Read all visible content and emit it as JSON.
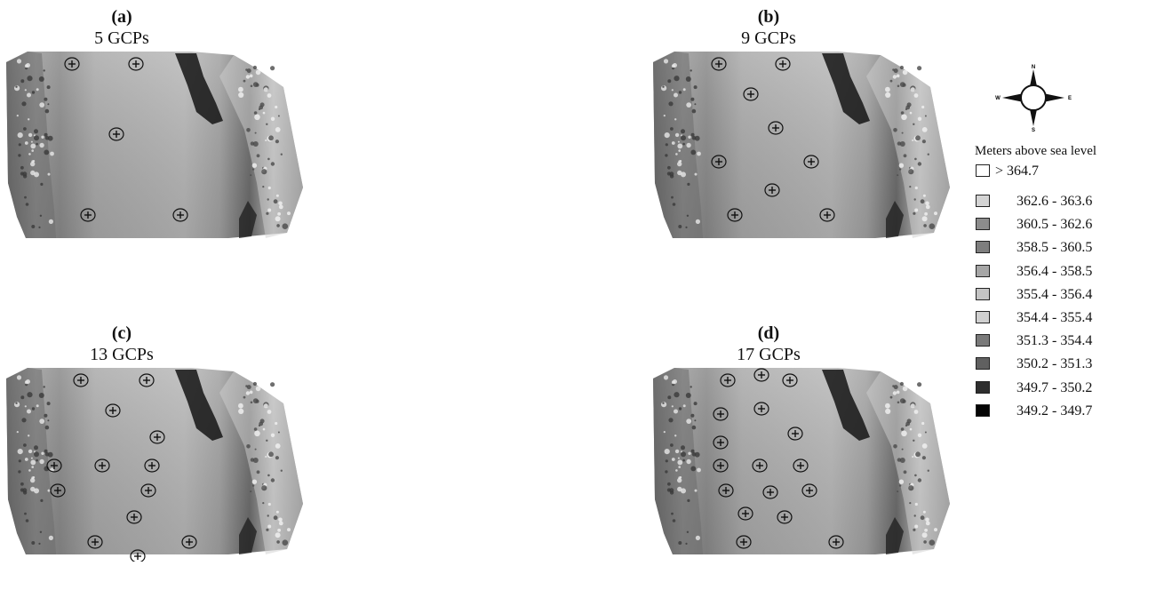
{
  "panels": [
    {
      "id": "a",
      "label": "(a)",
      "title": "5 GCPs",
      "gcps": [
        [
          74,
          16
        ],
        [
          146,
          16
        ],
        [
          124,
          95
        ],
        [
          92,
          186
        ],
        [
          196,
          186
        ]
      ]
    },
    {
      "id": "b",
      "label": "(b)",
      "title": "9 GCPs",
      "gcps": [
        [
          74,
          16
        ],
        [
          146,
          16
        ],
        [
          110,
          50
        ],
        [
          138,
          88
        ],
        [
          74,
          126
        ],
        [
          178,
          126
        ],
        [
          134,
          158
        ],
        [
          92,
          186
        ],
        [
          196,
          186
        ]
      ]
    },
    {
      "id": "c",
      "label": "(c)",
      "title": "13 GCPs",
      "gcps": [
        [
          84,
          16
        ],
        [
          158,
          16
        ],
        [
          120,
          50
        ],
        [
          170,
          80
        ],
        [
          54,
          112
        ],
        [
          108,
          112
        ],
        [
          164,
          112
        ],
        [
          58,
          140
        ],
        [
          160,
          140
        ],
        [
          144,
          170
        ],
        [
          100,
          198
        ],
        [
          206,
          198
        ],
        [
          148,
          214
        ]
      ]
    },
    {
      "id": "d",
      "label": "(d)",
      "title": "17 GCPs",
      "gcps": [
        [
          84,
          16
        ],
        [
          122,
          10
        ],
        [
          154,
          16
        ],
        [
          122,
          48
        ],
        [
          76,
          54
        ],
        [
          160,
          76
        ],
        [
          76,
          86
        ],
        [
          76,
          112
        ],
        [
          120,
          112
        ],
        [
          166,
          112
        ],
        [
          82,
          140
        ],
        [
          132,
          142
        ],
        [
          176,
          140
        ],
        [
          104,
          166
        ],
        [
          148,
          170
        ],
        [
          102,
          198
        ],
        [
          206,
          198
        ]
      ]
    }
  ],
  "legend": {
    "compass_labels": {
      "n": "N",
      "s": "S",
      "e": "E",
      "w": "W"
    },
    "title": "Meters above sea level",
    "items": [
      {
        "label": "> 364.7",
        "color": "#ffffff"
      },
      {
        "label": "362.6 - 363.6",
        "color": "#d4d4d4"
      },
      {
        "label": "360.5 - 362.6",
        "color": "#8c8c8c"
      },
      {
        "label": "358.5 - 360.5",
        "color": "#7e7e7e"
      },
      {
        "label": "356.4 - 358.5",
        "color": "#a6a6a6"
      },
      {
        "label": "355.4 - 356.4",
        "color": "#c4c4c4"
      },
      {
        "label": "354.4 - 355.4",
        "color": "#d0d0d0"
      },
      {
        "label": "351.3 - 354.4",
        "color": "#7a7a7a"
      },
      {
        "label": "350.2 - 351.3",
        "color": "#606060"
      },
      {
        "label": "349.7 - 350.2",
        "color": "#2e2e2e"
      },
      {
        "label": "349.2 - 349.7",
        "color": "#050505"
      }
    ]
  }
}
